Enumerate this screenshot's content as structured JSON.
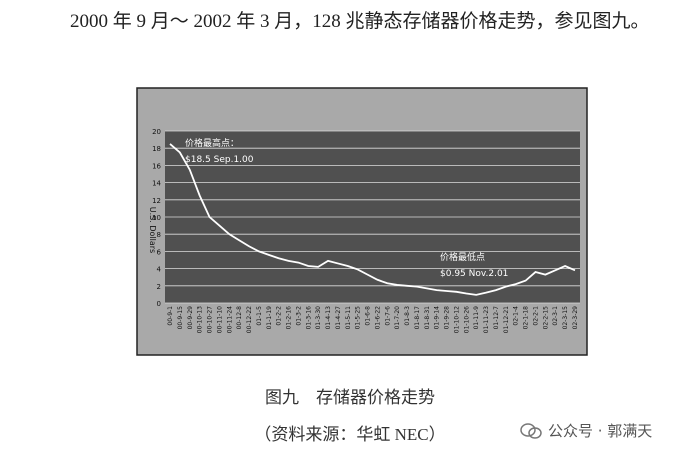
{
  "paragraph": "2000 年 9 月～ 2002 年 3 月，128 兆静态存储器价格走势，参见图九。",
  "chart_data": {
    "type": "line",
    "ylabel": "U.S. Dollars",
    "categories": [
      "00-9-1",
      "00-9-15",
      "00-9-29",
      "00-10-13",
      "00-10-27",
      "00-11-10",
      "00-11-24",
      "00-12-8",
      "00-12-22",
      "01-1-5",
      "01-1-19",
      "01-2-2",
      "01-2-16",
      "01-3-2",
      "01-3-16",
      "01-3-30",
      "01-4-13",
      "01-4-27",
      "01-5-11",
      "01-5-25",
      "01-6-8",
      "01-6-22",
      "01-7-6",
      "01-7-20",
      "01-8-3",
      "01-8-17",
      "01-8-31",
      "01-9-14",
      "01-9-28",
      "01-10-12",
      "01-10-26",
      "01-11-9",
      "01-11-23",
      "01-12-7",
      "01-12-21",
      "02-1-4",
      "02-1-18",
      "02-2-1",
      "02-2-15",
      "02-3-1",
      "02-3-15",
      "02-3-29"
    ],
    "values": [
      18.5,
      17.5,
      15.5,
      12.5,
      10,
      9,
      8,
      7.3,
      6.6,
      6,
      5.6,
      5.2,
      4.9,
      4.7,
      4.3,
      4.2,
      4.9,
      4.6,
      4.3,
      3.9,
      3.3,
      2.7,
      2.3,
      2.1,
      2,
      1.9,
      1.7,
      1.5,
      1.4,
      1.3,
      1.1,
      0.95,
      1.2,
      1.5,
      1.9,
      2.2,
      2.6,
      3.6,
      3.3,
      3.8,
      4.3,
      3.8
    ],
    "color": "#ffffff",
    "ylim": [
      0,
      20
    ],
    "yticks": [
      0,
      2,
      4,
      6,
      8,
      10,
      12,
      14,
      16,
      18,
      20
    ],
    "grid": true,
    "annotations": [
      {
        "title": "价格最高点：",
        "text": "$18.5 Sep.1.00"
      },
      {
        "title": "价格最低点",
        "text": "$0.95 Nov.2.01"
      }
    ]
  },
  "caption": "图九　存储器价格走势",
  "source": "（资料来源：华虹 NEC）",
  "watermark": "公众号 · 郭满天"
}
